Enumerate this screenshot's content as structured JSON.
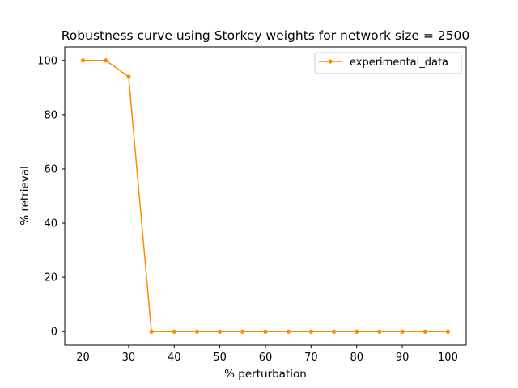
{
  "chart_data": {
    "type": "line",
    "title": "Robustness curve using Storkey weights for network size = 2500",
    "xlabel": "% perturbation",
    "ylabel": "% retrieval",
    "xlim": [
      16,
      104
    ],
    "ylim": [
      -5,
      105
    ],
    "xticks": [
      20,
      30,
      40,
      50,
      60,
      70,
      80,
      90,
      100
    ],
    "yticks": [
      0,
      20,
      40,
      60,
      80,
      100
    ],
    "grid": false,
    "legend_position": "top-right",
    "series": [
      {
        "name": "experimental_data",
        "color": "#ff8c00",
        "marker": "dot",
        "x": [
          20,
          25,
          30,
          35,
          40,
          45,
          50,
          55,
          60,
          65,
          70,
          75,
          80,
          85,
          90,
          95,
          100
        ],
        "y": [
          100,
          100,
          94,
          0,
          0,
          0,
          0,
          0,
          0,
          0,
          0,
          0,
          0,
          0,
          0,
          0,
          0
        ]
      }
    ]
  }
}
